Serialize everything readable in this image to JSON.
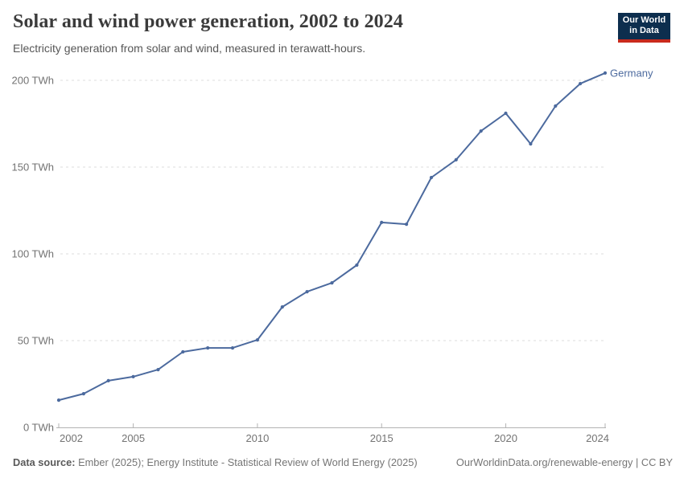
{
  "header": {
    "title": "Solar and wind power generation, 2002 to 2024",
    "subtitle": "Electricity generation from solar and wind, measured in terawatt-hours."
  },
  "logo": {
    "line1": "Our World",
    "line2": "in Data",
    "bg_color": "#0d2e4e",
    "accent_color": "#c92a1d"
  },
  "chart_data": {
    "type": "line",
    "title": "Solar and wind power generation, 2002 to 2024",
    "subtitle": "Electricity generation from solar and wind, measured in terawatt-hours.",
    "unit": "TWh",
    "x": [
      2002,
      2003,
      2004,
      2005,
      2006,
      2007,
      2008,
      2009,
      2010,
      2011,
      2012,
      2013,
      2014,
      2015,
      2016,
      2017,
      2018,
      2019,
      2020,
      2021,
      2022,
      2023,
      2024
    ],
    "series": [
      {
        "name": "Germany",
        "color": "#4C6A9E",
        "values": [
          15.7,
          19.4,
          26.9,
          29.2,
          33.3,
          43.5,
          45.8,
          45.8,
          50.4,
          69.4,
          78.2,
          83.3,
          93.5,
          118.1,
          117.1,
          144.0,
          154.2,
          170.8,
          181.0,
          163.4,
          185.2,
          198.1,
          204.2
        ]
      }
    ],
    "xlim": [
      2002,
      2024
    ],
    "ylim": [
      0,
      200
    ],
    "yticks": [
      0,
      50,
      100,
      150,
      200
    ],
    "ytick_labels": [
      "0 TWh",
      "50 TWh",
      "100 TWh",
      "150 TWh",
      "200 TWh"
    ],
    "xticks": [
      2002,
      2005,
      2010,
      2015,
      2020,
      2024
    ],
    "grid": "horizontal-dashed",
    "legend_position": "end-of-line-label",
    "axis_label_color": "#737373",
    "gridline_color": "#dcdcdc",
    "axis_line_color": "#b3b3b3"
  },
  "footer": {
    "source_label": "Data source:",
    "source_text": "Ember (2025); Energy Institute - Statistical Review of World Energy (2025)",
    "link_text": "OurWorldinData.org/renewable-energy | CC BY"
  }
}
